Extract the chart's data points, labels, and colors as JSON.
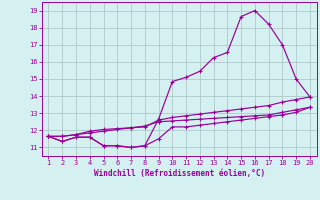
{
  "xlabel": "Windchill (Refroidissement éolien,°C)",
  "x_values": [
    1,
    2,
    3,
    4,
    5,
    6,
    7,
    8,
    9,
    10,
    11,
    12,
    13,
    14,
    15,
    16,
    17,
    18,
    19,
    20
  ],
  "line1_y": [
    11.65,
    11.35,
    11.6,
    11.6,
    11.1,
    11.1,
    11.0,
    11.1,
    11.5,
    12.2,
    12.2,
    12.3,
    12.4,
    12.5,
    12.6,
    12.7,
    12.8,
    12.9,
    13.05,
    13.35
  ],
  "line2_y": [
    11.65,
    11.65,
    11.75,
    11.85,
    11.95,
    12.05,
    12.15,
    12.25,
    12.5,
    12.55,
    12.6,
    12.65,
    12.7,
    12.75,
    12.8,
    12.85,
    12.9,
    13.05,
    13.2,
    13.35
  ],
  "line3_y": [
    11.65,
    11.65,
    11.75,
    11.95,
    12.05,
    12.1,
    12.15,
    12.2,
    12.6,
    12.75,
    12.85,
    12.95,
    13.05,
    13.15,
    13.25,
    13.35,
    13.45,
    13.65,
    13.8,
    13.95
  ],
  "line4_y": [
    11.65,
    11.35,
    11.6,
    11.6,
    11.1,
    11.1,
    11.0,
    11.1,
    12.65,
    14.85,
    15.1,
    15.45,
    16.25,
    16.55,
    18.65,
    19.0,
    18.2,
    17.0,
    15.0,
    13.95
  ],
  "line_color": "#990099",
  "bg_color": "#d4f0f0",
  "grid_color": "#b0c8c8",
  "ylim": [
    10.5,
    19.5
  ],
  "xlim": [
    0.5,
    20.5
  ],
  "yticks": [
    11,
    12,
    13,
    14,
    15,
    16,
    17,
    18,
    19
  ],
  "xticks": [
    1,
    2,
    3,
    4,
    5,
    6,
    7,
    8,
    9,
    10,
    11,
    12,
    13,
    14,
    15,
    16,
    17,
    18,
    19,
    20
  ],
  "marker": "+"
}
